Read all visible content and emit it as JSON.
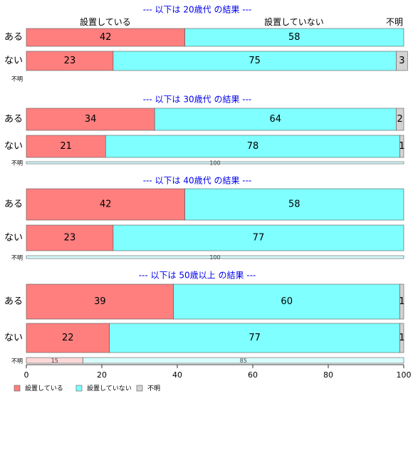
{
  "chart_data": {
    "type": "bar",
    "orientation": "horizontal-stacked",
    "xlim": [
      0,
      100
    ],
    "x_ticks": [
      0,
      20,
      40,
      60,
      80,
      100
    ],
    "grid": false,
    "legend_position": "bottom-left",
    "colors": {
      "設置している": "#ff7f7f",
      "設置していない": "#7fffff",
      "不明": "#d3d3d3"
    },
    "series_names": [
      "設置している",
      "設置していない",
      "不明"
    ],
    "top_column_labels": [
      "設置している",
      "設置していない",
      "不明"
    ],
    "panels": [
      {
        "title": "--- 以下は 20歳代 の結果 ---",
        "rows": [
          {
            "label": "ある",
            "values": [
              42,
              58,
              0
            ],
            "shown": [
              "42",
              "58",
              ""
            ]
          },
          {
            "label": "ない",
            "values": [
              23,
              75,
              3
            ],
            "shown": [
              "23",
              "75",
              "3"
            ]
          },
          {
            "label": "不明",
            "values": [],
            "shown": []
          }
        ]
      },
      {
        "title": "--- 以下は 30歳代 の結果 ---",
        "rows": [
          {
            "label": "ある",
            "values": [
              34,
              64,
              2
            ],
            "shown": [
              "34",
              "64",
              "2"
            ]
          },
          {
            "label": "ない",
            "values": [
              21,
              78,
              1
            ],
            "shown": [
              "21",
              "78",
              "1"
            ]
          },
          {
            "label": "不明",
            "values": [
              0,
              100,
              0
            ],
            "shown": [
              "",
              "100",
              ""
            ]
          }
        ]
      },
      {
        "title": "--- 以下は 40歳代 の結果 ---",
        "rows": [
          {
            "label": "ある",
            "values": [
              42,
              58,
              0
            ],
            "shown": [
              "42",
              "58",
              ""
            ]
          },
          {
            "label": "ない",
            "values": [
              23,
              77,
              0
            ],
            "shown": [
              "23",
              "77",
              ""
            ]
          },
          {
            "label": "不明",
            "values": [
              0,
              100,
              0
            ],
            "shown": [
              "",
              "100",
              ""
            ]
          }
        ]
      },
      {
        "title": "--- 以下は 50歳以上 の結果 ---",
        "rows": [
          {
            "label": "ある",
            "values": [
              39,
              60,
              1
            ],
            "shown": [
              "39",
              "60",
              "1"
            ]
          },
          {
            "label": "ない",
            "values": [
              22,
              77,
              1
            ],
            "shown": [
              "22",
              "77",
              "1"
            ]
          },
          {
            "label": "不明",
            "values": [
              15,
              85,
              0
            ],
            "shown": [
              "15",
              "85",
              ""
            ]
          }
        ]
      }
    ]
  }
}
